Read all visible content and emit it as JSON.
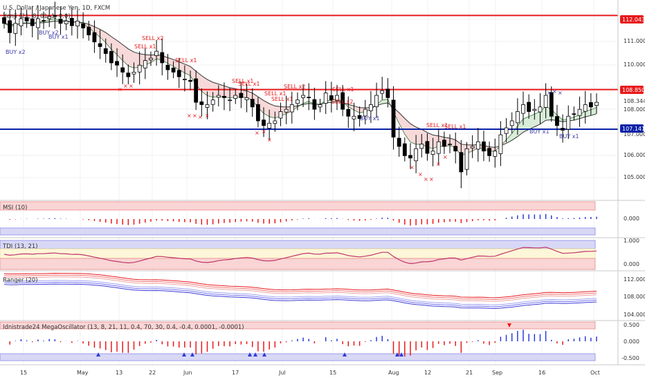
{
  "chart_data": {
    "type": "candlestick",
    "title": "U.S. Dollar / Japanese Yen, 1D, FXCM",
    "x_ticks": [
      "15",
      "May",
      "13",
      "22",
      "Jun",
      "17",
      "Jul",
      "15",
      "Aug",
      "12",
      "21",
      "Sep",
      "16",
      "Oct"
    ],
    "price_axis": {
      "range": [
        104.4,
        112.6
      ],
      "ticks": [
        "112.000",
        "111.000",
        "110.000",
        "109.000",
        "108.000",
        "107.000",
        "106.000",
        "105.000"
      ],
      "extra_ticks": [
        "108.344"
      ]
    },
    "horizontal_lines": [
      {
        "price": 112.043,
        "label": "112.043",
        "color": "#e8191b"
      },
      {
        "price": 108.85,
        "label": "108.850",
        "color": "#e8191b"
      },
      {
        "price": 107.141,
        "label": "107.141",
        "color": "#0b22a8"
      }
    ],
    "closes": [
      111.7,
      111.3,
      111.7,
      111.9,
      111.8,
      111.6,
      111.9,
      111.8,
      112.0,
      112.0,
      111.7,
      111.8,
      111.6,
      111.8,
      111.5,
      111.2,
      110.9,
      110.7,
      110.4,
      110.0,
      109.9,
      109.6,
      109.4,
      109.6,
      109.9,
      110.1,
      110.2,
      110.5,
      110.0,
      109.7,
      109.6,
      109.4,
      109.3,
      109.2,
      108.3,
      108.2,
      108.2,
      108.4,
      108.6,
      108.5,
      108.4,
      108.6,
      108.5,
      108.5,
      108.1,
      107.5,
      107.3,
      107.4,
      107.5,
      107.9,
      108.0,
      108.2,
      108.4,
      108.6,
      108.5,
      108.0,
      108.2,
      108.7,
      108.4,
      108.6,
      108.0,
      107.7,
      107.7,
      107.6,
      108.0,
      108.2,
      108.6,
      108.8,
      108.5,
      106.8,
      106.4,
      106.0,
      105.9,
      106.3,
      106.5,
      106.1,
      106.2,
      106.6,
      106.4,
      106.5,
      106.2,
      105.3,
      106.3,
      106.4,
      106.6,
      106.2,
      106.0,
      106.2,
      106.9,
      107.2,
      107.5,
      107.9,
      108.2,
      107.9,
      108.0,
      108.1,
      108.6,
      107.7,
      107.3,
      107.1,
      107.7,
      107.8,
      108.0,
      108.2,
      108.1,
      108.3
    ],
    "signals": [
      {
        "label": "BUY x2",
        "color": "#3a3aa8"
      },
      {
        "label": "BUY x2",
        "color": "#3a3aa8"
      },
      {
        "label": "BUY x1",
        "color": "#3a3aa8"
      },
      {
        "label": "SELL x2",
        "color": "#e8191b"
      },
      {
        "label": "SELL x1",
        "color": "#e8191b"
      },
      {
        "label": "SELL x1",
        "color": "#e8191b"
      },
      {
        "label": "SELL x1",
        "color": "#e8191b"
      },
      {
        "label": "SELL x1",
        "color": "#e8191b"
      },
      {
        "label": "SELL x1",
        "color": "#e8191b"
      },
      {
        "label": "SELL x2",
        "color": "#e8191b"
      },
      {
        "label": "SELL x1",
        "color": "#e8191b"
      },
      {
        "label": "SELL x1",
        "color": "#e8191b"
      },
      {
        "label": "SELL x2",
        "color": "#e8191b"
      },
      {
        "label": "BUY x1",
        "color": "#3a3aa8"
      },
      {
        "label": "SELL x1",
        "color": "#e8191b"
      },
      {
        "label": "SELL x1",
        "color": "#e8191b"
      },
      {
        "label": "BUY x1",
        "color": "#3a3aa8"
      },
      {
        "label": "BUY x1",
        "color": "#3a3aa8"
      }
    ],
    "panes": [
      {
        "name": "main",
        "title": "Xenji (21, 8, 01, 1, 0.0)"
      },
      {
        "name": "msi",
        "title": "MSI (10)",
        "ticks": [
          "0.000"
        ]
      },
      {
        "name": "tdi",
        "title": "TDI (13, 21)",
        "ticks": [
          "1.000",
          "0.000"
        ]
      },
      {
        "name": "ranger",
        "title": "Ranger (20)",
        "ticks": [
          "112.000",
          "108.000",
          "104.000"
        ]
      },
      {
        "name": "mega",
        "title": "Idnistrade24 MegaOscillator (13, 8, 21, 11, 0.4, 70, 30, 0.4, -0.4, 0.0001, -0.0001)",
        "ticks": [
          "0.500",
          "0.000",
          "-0.500"
        ]
      }
    ]
  }
}
